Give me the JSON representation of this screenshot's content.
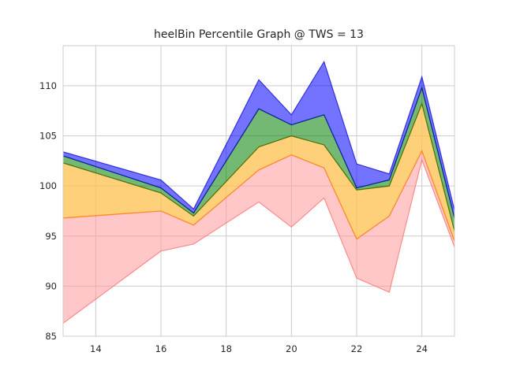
{
  "chart_data": {
    "type": "area",
    "title": "heelBin Percentile Graph @ TWS = 13",
    "xlabel": "",
    "ylabel": "",
    "xlim": [
      13,
      25
    ],
    "ylim": [
      85,
      114
    ],
    "grid": true,
    "x_ticks": [
      14,
      16,
      18,
      20,
      22,
      24
    ],
    "y_ticks": [
      85,
      90,
      95,
      100,
      105,
      110
    ],
    "x_tick_labels": [
      "14",
      "16",
      "18",
      "20",
      "22",
      "24"
    ],
    "y_tick_labels": [
      "85",
      "90",
      "95",
      "100",
      "105",
      "110"
    ],
    "x": [
      13,
      16,
      17,
      19,
      20,
      21,
      22,
      23,
      24,
      25
    ],
    "series": [
      {
        "values": [
          86.3,
          93.5,
          94.2,
          98.4,
          95.9,
          98.8,
          90.8,
          89.4,
          102.6,
          93.9
        ]
      },
      {
        "values": [
          96.8,
          97.5,
          96.1,
          101.6,
          103.1,
          101.8,
          94.7,
          97.0,
          103.5,
          94.5
        ]
      },
      {
        "values": [
          102.3,
          99.3,
          97.0,
          103.9,
          105.0,
          104.1,
          99.6,
          100.0,
          108.2,
          95.5
        ]
      },
      {
        "values": [
          103.0,
          99.8,
          97.3,
          107.7,
          106.1,
          107.1,
          99.8,
          100.6,
          109.8,
          96.8
        ]
      },
      {
        "values": [
          103.4,
          100.6,
          97.7,
          110.6,
          107.1,
          112.4,
          102.2,
          101.2,
          110.9,
          97.6
        ]
      }
    ],
    "bands": [
      {
        "lower": 0,
        "upper": 1,
        "fill": "#ff9999",
        "stroke": "#ff6666"
      },
      {
        "lower": 1,
        "upper": 2,
        "fill": "#ffc04d",
        "stroke": "#ff8c00"
      },
      {
        "lower": 2,
        "upper": 3,
        "fill": "#008000",
        "stroke": "#006400"
      },
      {
        "lower": 3,
        "upper": 4,
        "fill": "#0000ff",
        "stroke": "#0000cc"
      }
    ]
  }
}
